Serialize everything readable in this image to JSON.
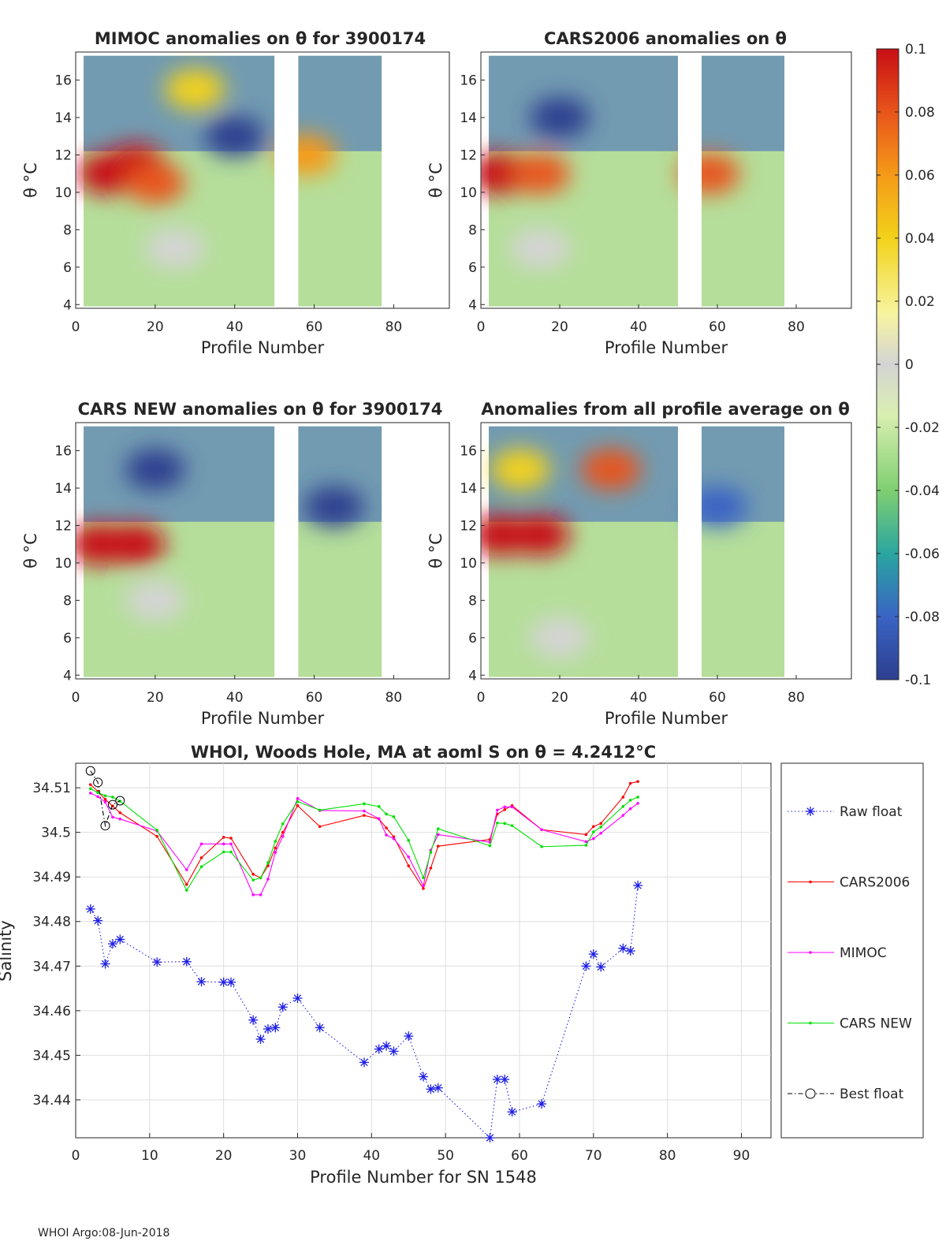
{
  "colors": {
    "raw": "#1f1fe6",
    "cars2006": "#ff0000",
    "mimoc": "#ff00ff",
    "cars_new": "#00e000",
    "best": "#000000",
    "colorbar": [
      "#2d3f8f",
      "#3a64c4",
      "#2aa6a0",
      "#7fcf70",
      "#d9efb0",
      "#d4d4d4",
      "#f7f4a0",
      "#f2d21a",
      "#f59a18",
      "#e8541a",
      "#c80e15"
    ]
  },
  "panels": [
    {
      "title": "MIMOC anomalies on θ  for 3900174",
      "xlabel": "Profile Number",
      "ylabel": "θ °C",
      "yticks": [
        "4",
        "6",
        "8",
        "10",
        "12",
        "14",
        "16"
      ],
      "xticks": [
        "0",
        "20",
        "40",
        "60",
        "80"
      ],
      "gaps": [
        [
          50,
          56
        ],
        [
          77,
          94
        ]
      ],
      "blobs": [
        {
          "x": 8,
          "y": 11,
          "c": 10
        },
        {
          "x": 15,
          "y": 11.5,
          "c": 10
        },
        {
          "x": 20,
          "y": 10.5,
          "c": 9
        },
        {
          "x": 30,
          "y": 15.5,
          "c": 7
        },
        {
          "x": 58,
          "y": 12,
          "c": 8
        },
        {
          "x": 25,
          "y": 7,
          "c": 5
        },
        {
          "x": 40,
          "y": 13,
          "c": 0
        }
      ]
    },
    {
      "title": "CARS2006 anomalies on θ",
      "xlabel": "Profile Number",
      "ylabel": "θ °C",
      "yticks": [
        "4",
        "6",
        "8",
        "10",
        "12",
        "14",
        "16"
      ],
      "xticks": [
        "0",
        "20",
        "40",
        "60",
        "80"
      ],
      "gaps": [
        [
          50,
          56
        ],
        [
          77,
          94
        ]
      ],
      "blobs": [
        {
          "x": 5,
          "y": 11,
          "c": 10
        },
        {
          "x": 15,
          "y": 11,
          "c": 9
        },
        {
          "x": 58,
          "y": 11,
          "c": 9
        },
        {
          "x": 15,
          "y": 7,
          "c": 5
        },
        {
          "x": 20,
          "y": 14,
          "c": 0
        }
      ]
    },
    {
      "title": "CARS NEW anomalies on θ for 3900174",
      "xlabel": "Profile Number",
      "ylabel": "θ °C",
      "yticks": [
        "4",
        "6",
        "8",
        "10",
        "12",
        "14",
        "16"
      ],
      "xticks": [
        "0",
        "20",
        "40",
        "60",
        "80"
      ],
      "gaps": [
        [
          50,
          56
        ],
        [
          77,
          94
        ]
      ],
      "blobs": [
        {
          "x": 6,
          "y": 11,
          "c": 10
        },
        {
          "x": 15,
          "y": 11,
          "c": 10
        },
        {
          "x": 20,
          "y": 8,
          "c": 5
        },
        {
          "x": 20,
          "y": 15,
          "c": 0
        },
        {
          "x": 65,
          "y": 13,
          "c": 0
        }
      ]
    },
    {
      "title": "Anomalies from all profile average on θ",
      "xlabel": "Profile Number",
      "ylabel": "θ °C",
      "yticks": [
        "4",
        "6",
        "8",
        "10",
        "12",
        "14",
        "16"
      ],
      "xticks": [
        "0",
        "20",
        "40",
        "60",
        "80"
      ],
      "gaps": [
        [
          50,
          56
        ],
        [
          77,
          94
        ]
      ],
      "blobs": [
        {
          "x": 5,
          "y": 11.5,
          "c": 10
        },
        {
          "x": 15,
          "y": 11.5,
          "c": 10
        },
        {
          "x": 33,
          "y": 15,
          "c": 9
        },
        {
          "x": 10,
          "y": 15,
          "c": 7
        },
        {
          "x": 20,
          "y": 6,
          "c": 5
        },
        {
          "x": 60,
          "y": 13,
          "c": 1
        }
      ]
    }
  ],
  "colorbar": {
    "ticks": [
      "0.1",
      "0.08",
      "0.06",
      "0.04",
      "0.02",
      "0",
      "-0.02",
      "-0.04",
      "-0.06",
      "-0.08",
      "-0.1"
    ]
  },
  "chart_data": {
    "type": "line",
    "title": "WHOI, Woods Hole, MA at aoml S on θ = 4.2412°C",
    "xlabel": "Profile Number for SN 1548",
    "ylabel": "Salinity",
    "xlim": [
      0,
      94
    ],
    "ylim": [
      34.4315,
      34.5155
    ],
    "xticks": [
      0,
      10,
      20,
      30,
      40,
      50,
      60,
      70,
      80,
      90
    ],
    "yticks": [
      34.44,
      34.45,
      34.46,
      34.47,
      34.48,
      34.49,
      34.5,
      34.51
    ],
    "ytick_labels": [
      "34.44",
      "34.45",
      "34.46",
      "34.47",
      "34.48",
      "34.49",
      "34.5",
      "34.51"
    ],
    "grid": true,
    "legend_position": "right",
    "series": [
      {
        "name": "Raw float",
        "style": "dotted-star",
        "x": [
          2,
          3,
          4,
          5,
          6,
          11,
          15,
          17,
          20,
          21,
          24,
          25,
          26,
          27,
          28,
          30,
          33,
          39,
          41,
          42,
          43,
          45,
          47,
          48,
          49,
          56,
          57,
          58,
          59,
          63,
          69,
          70,
          71,
          74,
          75,
          76
        ],
        "y": [
          34.4828,
          34.4802,
          34.4705,
          34.475,
          34.476,
          34.4709,
          34.471,
          34.4665,
          34.4664,
          34.4664,
          34.4579,
          34.4536,
          34.4559,
          34.4562,
          34.4608,
          34.4628,
          34.4562,
          34.4484,
          34.4514,
          34.4521,
          34.4509,
          34.4543,
          34.4452,
          34.4424,
          34.4427,
          34.4315,
          34.4446,
          34.4446,
          34.4373,
          34.4391,
          34.47,
          34.4727,
          34.4698,
          34.474,
          34.4734,
          34.4881
        ]
      },
      {
        "name": "CARS2006",
        "style": "solid-dot",
        "x": [
          2,
          3,
          4,
          5,
          6,
          11,
          15,
          17,
          20,
          21,
          24,
          25,
          26,
          27,
          28,
          30,
          33,
          39,
          41,
          42,
          43,
          45,
          47,
          48,
          49,
          56,
          57,
          58,
          59,
          63,
          69,
          70,
          71,
          74,
          75,
          76
        ],
        "y": [
          34.5107,
          34.5092,
          34.5074,
          34.5059,
          34.5044,
          34.4991,
          34.4883,
          34.4943,
          34.4989,
          34.4987,
          34.4906,
          34.4898,
          34.4925,
          34.4965,
          34.5,
          34.506,
          34.5013,
          34.5038,
          34.503,
          34.501,
          34.499,
          34.4925,
          34.4874,
          34.492,
          34.4969,
          34.4984,
          34.5041,
          34.5051,
          34.506,
          34.5006,
          34.4995,
          34.5013,
          34.502,
          34.5079,
          34.511,
          34.5114
        ]
      },
      {
        "name": "MIMOC",
        "style": "solid-dot",
        "x": [
          2,
          3,
          4,
          5,
          6,
          11,
          15,
          17,
          20,
          21,
          24,
          25,
          26,
          27,
          28,
          30,
          33,
          39,
          41,
          42,
          43,
          45,
          47,
          48,
          49,
          56,
          57,
          58,
          59,
          63,
          69,
          70,
          71,
          74,
          75,
          76
        ],
        "y": [
          34.5088,
          34.508,
          34.5068,
          34.5034,
          34.503,
          34.5003,
          34.4916,
          34.4974,
          34.4974,
          34.4974,
          34.486,
          34.486,
          34.4895,
          34.4955,
          34.4991,
          34.5076,
          34.5049,
          34.5048,
          34.5031,
          34.4994,
          34.4986,
          34.4945,
          34.488,
          34.496,
          34.4995,
          34.4978,
          34.505,
          34.5057,
          34.5057,
          34.5006,
          34.4979,
          34.4986,
          34.4998,
          34.5038,
          34.5053,
          34.5065
        ]
      },
      {
        "name": "CARS NEW",
        "style": "solid-dot",
        "x": [
          2,
          3,
          4,
          5,
          6,
          11,
          15,
          17,
          20,
          21,
          24,
          25,
          26,
          27,
          28,
          30,
          33,
          39,
          41,
          42,
          43,
          45,
          47,
          48,
          49,
          56,
          57,
          58,
          59,
          63,
          69,
          70,
          71,
          74,
          75,
          76
        ],
        "y": [
          34.5098,
          34.5089,
          34.5082,
          34.5079,
          34.507,
          34.5005,
          34.487,
          34.4923,
          34.4956,
          34.4956,
          34.4893,
          34.4898,
          34.4932,
          34.498,
          34.5019,
          34.5069,
          34.505,
          34.5064,
          34.5058,
          34.5041,
          34.5035,
          34.4982,
          34.4898,
          34.4955,
          34.5008,
          34.497,
          34.5021,
          34.502,
          34.5015,
          34.4968,
          34.4971,
          34.5001,
          34.5012,
          34.5058,
          34.5072,
          34.5079
        ]
      },
      {
        "name": "Best float",
        "style": "dashdot-circle",
        "x": [
          2,
          3,
          4,
          5,
          6
        ],
        "y": [
          34.5138,
          34.5112,
          34.5015,
          34.5062,
          34.5071
        ]
      }
    ]
  },
  "footer": {
    "text": "WHOI Argo:08-Jun-2018"
  }
}
